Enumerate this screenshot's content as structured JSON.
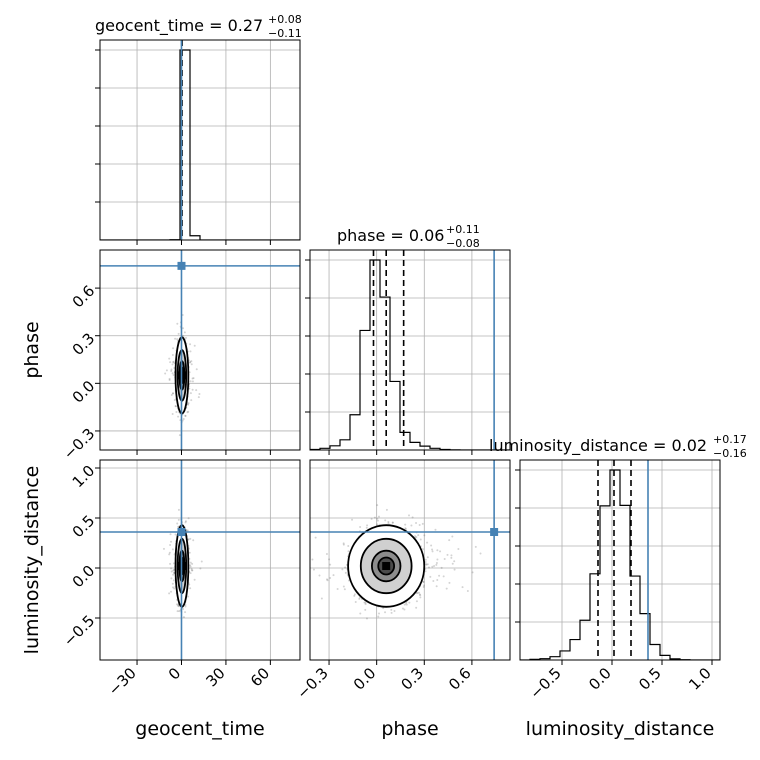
{
  "chart_data": {
    "type": "corner",
    "parameters": [
      "geocent_time",
      "phase",
      "luminosity_distance"
    ],
    "truth_color": "#4682b4",
    "truths": {
      "geocent_time": 0.0,
      "phase": 0.74,
      "luminosity_distance": 0.36
    },
    "grid": true,
    "titles": [
      {
        "param": "geocent_time",
        "prefix": "geocent_time = 0.27",
        "plus": "+0.08",
        "minus": "−0.11"
      },
      {
        "param": "phase",
        "prefix": "phase = 0.06",
        "plus": "+0.11",
        "minus": "−0.08"
      },
      {
        "param": "luminosity_distance",
        "prefix": "luminosity_distance = 0.02",
        "plus": "+0.17",
        "minus": "−0.16"
      }
    ],
    "axis_labels": {
      "x": [
        "geocent_time",
        "phase",
        "luminosity_distance"
      ],
      "y": [
        "phase",
        "luminosity_distance"
      ]
    },
    "ranges": {
      "geocent_time": [
        -55,
        80
      ],
      "phase": [
        -0.42,
        0.84
      ],
      "luminosity_distance": [
        -0.92,
        1.08
      ]
    },
    "ticks": {
      "geocent_time": {
        "values": [
          -30,
          0,
          30,
          60
        ],
        "labels": [
          "−30",
          "0",
          "30",
          "60"
        ]
      },
      "phase": {
        "values": [
          -0.3,
          0.0,
          0.3,
          0.6
        ],
        "labels": [
          "−0.3",
          "0.0",
          "0.3",
          "0.6"
        ]
      },
      "luminosity_distance": {
        "values": [
          -0.5,
          0.0,
          0.5,
          1.0
        ],
        "labels": [
          "−0.5",
          "0.0",
          "0.5",
          "1.0"
        ]
      }
    },
    "histograms": {
      "geocent_time": {
        "edges": [
          -55,
          -48.25,
          -41.5,
          -34.75,
          -28,
          -21.25,
          -14.5,
          -7.75,
          -1,
          5.75,
          12.5,
          19.25,
          26,
          32.75,
          39.5,
          46.25,
          53,
          59.75,
          66.5,
          73.25,
          80
        ],
        "counts": [
          0,
          0,
          0,
          0,
          0,
          0,
          0,
          8,
          4900,
          110,
          0,
          0,
          0,
          0,
          0,
          0,
          0,
          0,
          0,
          0
        ],
        "quantiles": [
          0.16,
          0.27,
          0.35
        ]
      },
      "phase": {
        "edges": [
          -0.42,
          -0.357,
          -0.294,
          -0.231,
          -0.168,
          -0.105,
          -0.042,
          0.021,
          0.084,
          0.147,
          0.21,
          0.273,
          0.336,
          0.399,
          0.462,
          0.525,
          0.588,
          0.651,
          0.714,
          0.777,
          0.84
        ],
        "counts": [
          5,
          18,
          45,
          110,
          380,
          1290,
          2050,
          1650,
          740,
          190,
          82,
          42,
          18,
          6,
          1,
          0,
          0,
          0,
          0,
          0
        ],
        "quantiles": [
          -0.02,
          0.06,
          0.17
        ]
      },
      "luminosity_distance": {
        "edges": [
          -0.92,
          -0.82,
          -0.72,
          -0.62,
          -0.52,
          -0.42,
          -0.32,
          -0.22,
          -0.12,
          -0.02,
          0.08,
          0.18,
          0.28,
          0.38,
          0.48,
          0.58,
          0.68,
          0.78,
          0.88,
          0.98,
          1.08
        ],
        "counts": [
          0,
          6,
          12,
          30,
          82,
          185,
          360,
          780,
          1395,
          1720,
          1400,
          760,
          420,
          140,
          42,
          10,
          2,
          0,
          0,
          0
        ],
        "quantiles": [
          -0.14,
          0.02,
          0.19
        ]
      }
    },
    "scatter": {
      "phase_vs_geocent_time": {
        "center": [
          0.3,
          0.05
        ],
        "sd": [
          1.8,
          0.1
        ],
        "n": 1200
      },
      "luminosity_distance_vs_geocent_time": {
        "center": [
          0.3,
          0.02
        ],
        "sd": [
          1.8,
          0.17
        ],
        "n": 1200
      },
      "luminosity_distance_vs_phase": {
        "center": [
          0.06,
          0.02
        ],
        "sd": [
          0.1,
          0.17
        ],
        "n": 1800
      }
    }
  }
}
